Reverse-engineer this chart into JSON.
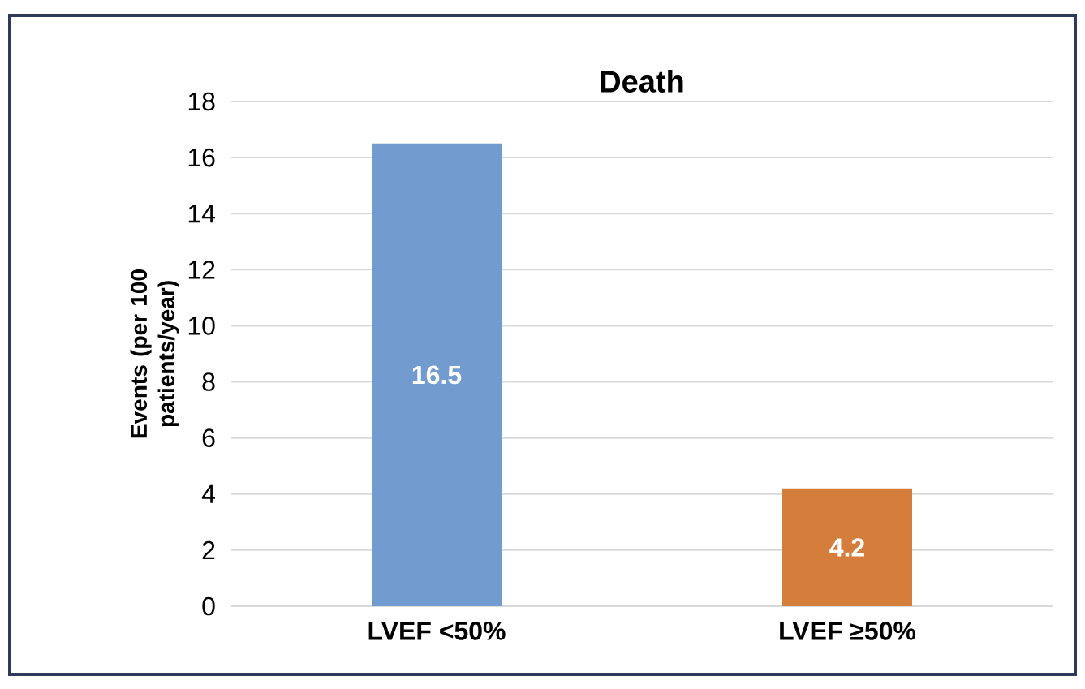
{
  "chart_data": {
    "type": "bar",
    "title": "Death",
    "ylabel": "Events (per 100 patients/year)",
    "categories": [
      "LVEF <50%",
      "LVEF ≥50%"
    ],
    "values": [
      16.5,
      4.2
    ],
    "colors": [
      "#729bd0",
      "#d57d3b"
    ],
    "value_labels": [
      "16.5",
      "4.2"
    ],
    "ylim": [
      0,
      18
    ],
    "yticks": [
      0,
      2,
      4,
      6,
      8,
      10,
      12,
      14,
      16,
      18
    ],
    "grid": "y"
  }
}
